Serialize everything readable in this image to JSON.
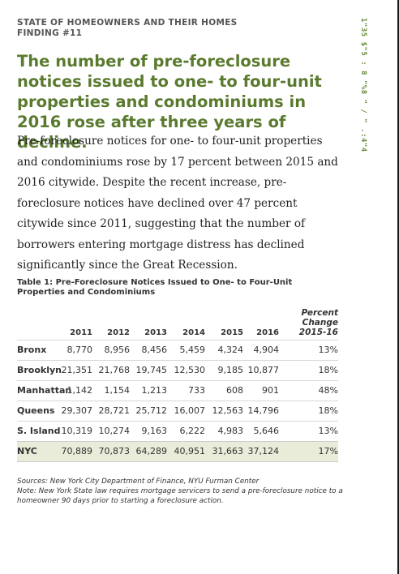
{
  "side_text": "1\"35 $\"5 : 8 \"%8 \" / \" .:4\"4",
  "kicker": {
    "line1": "STATE OF HOMEOWNERS AND THEIR HOMES",
    "line2": "FINDING #11"
  },
  "headline": "The number of pre-foreclosure notices issued to one- to four-unit properties and condominiums in 2016 rose after three years of decline.",
  "body": "Pre-foreclosure notices for one- to four-unit properties and condominiums rose by 17 percent between 2015 and 2016 citywide. Despite the recent increase, pre-foreclosure notices have declined over 47 percent citywide since 2011, suggesting that the number of borrowers entering mortgage distress has declined significantly since the Great Recession.",
  "table": {
    "title": "Table 1: Pre-Foreclosure Notices Issued to One- to Four-Unit Properties and Condominiums",
    "columns": [
      "2011",
      "2012",
      "2013",
      "2014",
      "2015",
      "2016"
    ],
    "pct_header": [
      "Percent",
      "Change",
      "2015-16"
    ],
    "rows": [
      {
        "label": "Bronx",
        "values": [
          "8,770",
          "8,956",
          "8,456",
          "5,459",
          "4,324",
          "4,904"
        ],
        "pct": "13%"
      },
      {
        "label": "Brooklyn",
        "values": [
          "21,351",
          "21,768",
          "19,745",
          "12,530",
          "9,185",
          "10,877"
        ],
        "pct": "18%"
      },
      {
        "label": "Manhattan",
        "values": [
          "1,142",
          "1,154",
          "1,213",
          "733",
          "608",
          "901"
        ],
        "pct": "48%"
      },
      {
        "label": "Queens",
        "values": [
          "29,307",
          "28,721",
          "25,712",
          "16,007",
          "12,563",
          "14,796"
        ],
        "pct": "18%"
      },
      {
        "label": "S. Island",
        "values": [
          "10,319",
          "10,274",
          "9,163",
          "6,222",
          "4,983",
          "5,646"
        ],
        "pct": "13%"
      },
      {
        "label": "NYC",
        "values": [
          "70,889",
          "70,873",
          "64,289",
          "40,951",
          "31,663",
          "37,124"
        ],
        "pct": "17%"
      }
    ]
  },
  "sources": {
    "line1": "Sources: New York City Department of Finance, NYU Furman Center",
    "line2": "Note: New York State law requires mortgage servicers to send a pre-foreclosure notice to a homeowner 90 days prior to starting a foreclosure action."
  },
  "colors": {
    "headline": "#5a7a2e",
    "nyc_row_bg": "#e8ecd8"
  }
}
